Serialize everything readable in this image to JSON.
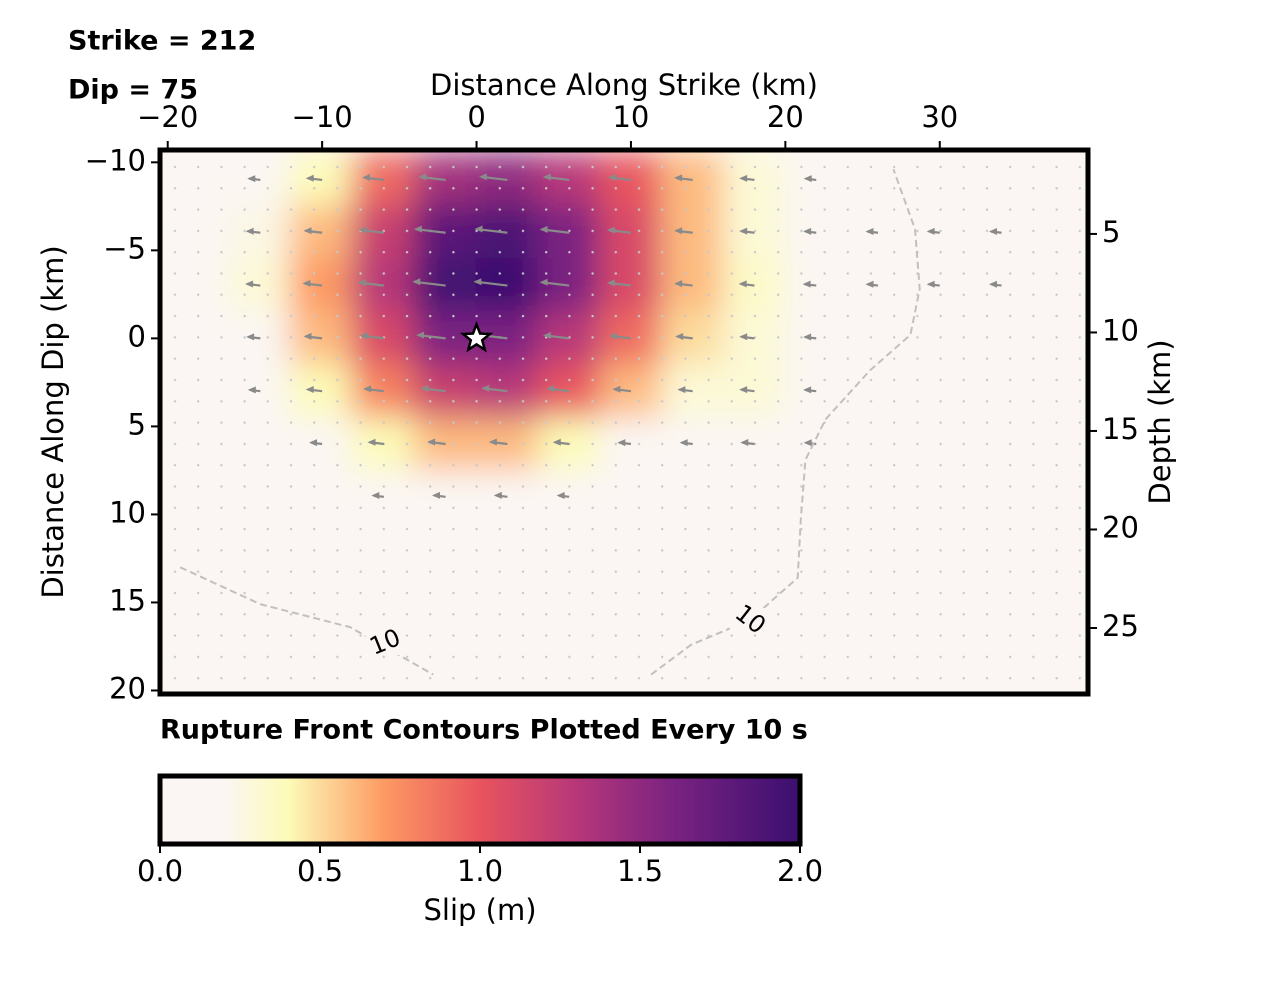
{
  "chart_data": {
    "type": "slip-map",
    "strike_text": "Strike = 212",
    "dip_text": "Dip = 75",
    "xlabel": "Distance Along Strike (km)",
    "ylabel": "Distance Along Dip (km)",
    "y2label": "Depth (km)",
    "footnote": "Rupture Front Contours Plotted Every 10 s",
    "colorbar_label": "Slip (m)",
    "xlim": [
      -20.5,
      39.6
    ],
    "ylim": [
      -10.7,
      20.2
    ],
    "y2lim": [
      0.74,
      28.35
    ],
    "xticks": [
      {
        "value": -20,
        "label": "−20"
      },
      {
        "value": -10,
        "label": "−10"
      },
      0,
      10,
      20,
      30
    ],
    "yticks": [
      {
        "value": -10,
        "label": "−10"
      },
      {
        "value": -5,
        "label": "−5"
      },
      0,
      5,
      10,
      15,
      20
    ],
    "y2ticks": [
      5,
      10,
      15,
      20,
      25
    ],
    "clim": [
      0,
      2
    ],
    "cticks": [
      {
        "value": 0,
        "label": "0.0"
      },
      {
        "value": 0.5,
        "label": "0.5"
      },
      {
        "value": 1,
        "label": "1.0"
      },
      {
        "value": 1.5,
        "label": "1.5"
      },
      {
        "value": 2,
        "label": "2.0"
      }
    ],
    "colormap": [
      [
        0,
        "#fbf6f3"
      ],
      [
        0.2,
        "#fbf6f3"
      ],
      [
        0.4,
        "#fcfbb8"
      ],
      [
        0.7,
        "#fd9a63"
      ],
      [
        1.0,
        "#e8545e"
      ],
      [
        1.3,
        "#b73779"
      ],
      [
        1.6,
        "#7a2381"
      ],
      [
        2.0,
        "#3b0f70"
      ]
    ],
    "x_centers": [
      -18,
      -14,
      -10,
      -6,
      -2,
      2,
      6,
      10,
      14,
      18,
      22,
      26,
      30,
      34,
      38
    ],
    "y_centers": [
      -9,
      -6,
      -3,
      0,
      3,
      6,
      9,
      12,
      15,
      18
    ],
    "slip": [
      [
        0,
        0.1,
        0.4,
        0.9,
        1.4,
        1.5,
        1.3,
        1.0,
        0.6,
        0.3,
        0.05,
        0,
        0,
        0,
        0
      ],
      [
        0,
        0.25,
        0.6,
        1.2,
        1.8,
        1.9,
        1.6,
        1.1,
        0.6,
        0.3,
        0.1,
        0.05,
        0.1,
        0.05,
        0
      ],
      [
        0,
        0.3,
        0.7,
        1.3,
        1.95,
        2.0,
        1.6,
        1.1,
        0.6,
        0.35,
        0.15,
        0.05,
        0.1,
        0.05,
        0
      ],
      [
        0,
        0.2,
        0.6,
        1.1,
        1.6,
        1.6,
        1.3,
        0.9,
        0.5,
        0.3,
        0.1,
        0,
        0,
        0,
        0
      ],
      [
        0,
        0.05,
        0.4,
        0.8,
        1.2,
        1.3,
        1.0,
        0.6,
        0.3,
        0.3,
        0.1,
        0,
        0,
        0,
        0
      ],
      [
        0,
        0,
        0.1,
        0.4,
        0.6,
        0.6,
        0.4,
        0.15,
        0.1,
        0.2,
        0.05,
        0,
        0,
        0,
        0
      ],
      [
        0,
        0,
        0,
        0.05,
        0.15,
        0.15,
        0.05,
        0,
        0,
        0,
        0,
        0,
        0,
        0,
        0
      ],
      [
        0,
        0,
        0,
        0,
        0,
        0,
        0,
        0,
        0,
        0,
        0,
        0,
        0,
        0,
        0
      ],
      [
        0,
        0,
        0,
        0,
        0,
        0,
        0,
        0,
        0,
        0,
        0,
        0,
        0,
        0,
        0
      ],
      [
        0,
        0,
        0,
        0,
        0,
        0,
        0,
        0,
        0,
        0,
        0,
        0,
        0,
        0,
        0
      ]
    ],
    "hypocenter": {
      "x": 0,
      "y": 0
    },
    "contours": [
      {
        "level": 10,
        "x": [
          -19.2,
          -14.0,
          -8.2,
          -4.6,
          -2.8
        ],
        "y": [
          13.0,
          15.1,
          16.4,
          18.2,
          19.1
        ],
        "label_x": -5.9,
        "label_y": 17.3
      },
      {
        "level": 10,
        "x": [
          11.3,
          13.9,
          17.7,
          20.8,
          21.0,
          21.3,
          22.6,
          25.5,
          28.1,
          28.7,
          28.4,
          27.0
        ],
        "y": [
          19.1,
          17.4,
          16.0,
          13.6,
          10.3,
          6.9,
          4.6,
          1.8,
          -0.2,
          -2.8,
          -6.2,
          -9.6
        ],
        "label_x": 17.7,
        "label_y": 16.0
      }
    ]
  }
}
